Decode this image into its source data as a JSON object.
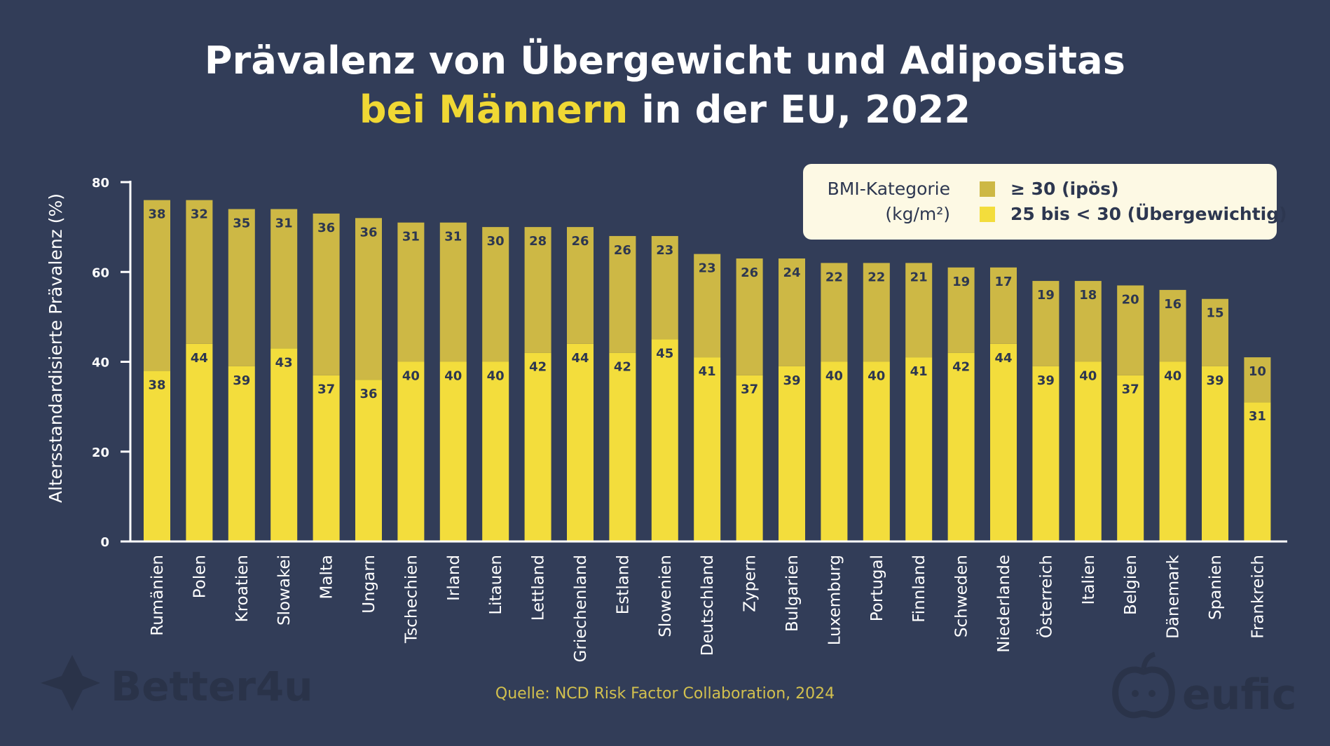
{
  "title": {
    "line1": "Prävalenz von Übergewicht und Adipositas",
    "line2_highlight": "bei Männern",
    "line2_rest": " in der EU, 2022"
  },
  "legend": {
    "category_line1": "BMI-Kategorie",
    "category_line2": "(kg/m²)",
    "items": [
      {
        "label": "≥ 30 (ipös)",
        "color": "#cdb845"
      },
      {
        "label": "25 bis < 30 (Übergewichtig)",
        "color": "#f3dd3c"
      }
    ]
  },
  "source": "Quelle: NCD Risk Factor Collaboration, 2024",
  "logos": {
    "left": "Better4u",
    "right": "eufic"
  },
  "colors": {
    "background": "#323d58",
    "highlight": "#f0d834",
    "overweight": "#f3dd3c",
    "obese": "#cdb845",
    "axis": "#ffffff"
  },
  "chart_data": {
    "type": "bar",
    "stacked": true,
    "ylabel": "Altersstandardisierte Prävalenz (%)",
    "xlabel": "",
    "ylim": [
      0,
      80
    ],
    "yticks": [
      0,
      20,
      40,
      60,
      80
    ],
    "grid": false,
    "legend_position": "top-right",
    "categories": [
      "Rumänien",
      "Polen",
      "Kroatien",
      "Slowakei",
      "Malta",
      "Ungarn",
      "Tschechien",
      "Irland",
      "Litauen",
      "Lettland",
      "Griechenland",
      "Estland",
      "Slowenien",
      "Deutschland",
      "Zypern",
      "Bulgarien",
      "Luxemburg",
      "Portugal",
      "Finnland",
      "Schweden",
      "Niederlande",
      "Österreich",
      "Italien",
      "Belgien",
      "Dänemark",
      "Spanien",
      "Frankreich"
    ],
    "series": [
      {
        "name": "25 bis < 30 (Übergewichtig)",
        "values": [
          38,
          44,
          39,
          43,
          37,
          36,
          40,
          40,
          40,
          42,
          44,
          42,
          45,
          41,
          37,
          39,
          40,
          40,
          41,
          42,
          44,
          39,
          40,
          37,
          40,
          39,
          31
        ]
      },
      {
        "name": "≥ 30 (ipös)",
        "values": [
          38,
          32,
          35,
          31,
          36,
          36,
          31,
          31,
          30,
          28,
          26,
          26,
          23,
          23,
          26,
          24,
          22,
          22,
          21,
          19,
          17,
          19,
          18,
          20,
          16,
          15,
          10
        ]
      }
    ]
  }
}
